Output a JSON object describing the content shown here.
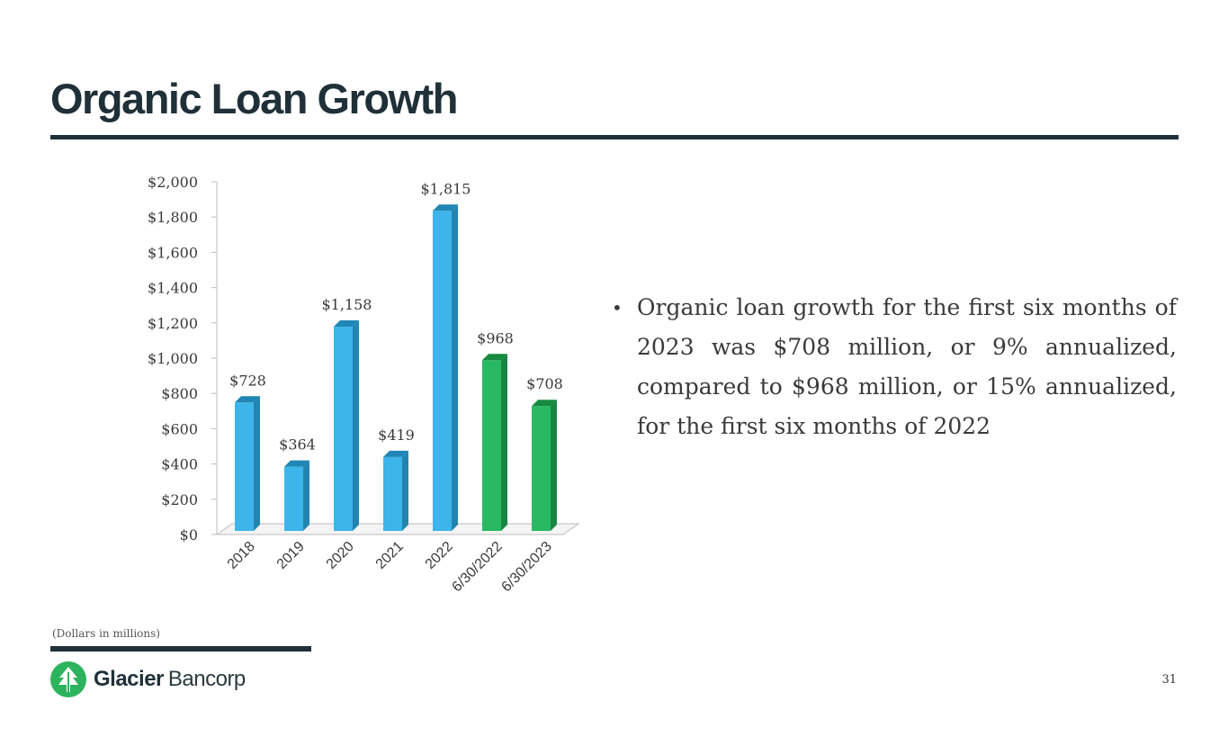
{
  "title": "Organic Loan Growth",
  "footnote": "(Dollars in millions)",
  "page_number": "31",
  "brand": {
    "name_bold": "Glacier",
    "name_light": "Bancorp",
    "color": "#2db35d"
  },
  "bullets": [
    "Organic loan growth for the first six months of 2023 was $708 million, or 9% annualized, compared to $968 million, or 15% annualized, for the first six months of 2022"
  ],
  "colors": {
    "bar_blue": "#3db5ea",
    "bar_blue_side": "#2384b0",
    "bar_blue_top": "#1f86b5",
    "bar_green": "#29b963",
    "bar_green_side": "#1a8442",
    "bar_green_top": "#178a40",
    "accent_dark": "#1f3038"
  },
  "chart_data": {
    "type": "bar",
    "categories": [
      "2018",
      "2019",
      "2020",
      "2021",
      "2022",
      "6/30/2022",
      "6/30/2023"
    ],
    "values": [
      728,
      364,
      1158,
      419,
      1815,
      968,
      708
    ],
    "data_labels": [
      "$728",
      "$364",
      "$1,158",
      "$419",
      "$1,815",
      "$968",
      "$708"
    ],
    "bar_colors": [
      "blue",
      "blue",
      "blue",
      "blue",
      "blue",
      "green",
      "green"
    ],
    "y_ticks": [
      0,
      200,
      400,
      600,
      800,
      1000,
      1200,
      1400,
      1600,
      1800,
      2000
    ],
    "y_tick_labels": [
      "$0",
      "$200",
      "$400",
      "$600",
      "$800",
      "$1,000",
      "$1,200",
      "$1,400",
      "$1,600",
      "$1,800",
      "$2,000"
    ],
    "ylim": [
      0,
      2000
    ],
    "title": "",
    "xlabel": "",
    "ylabel": "",
    "grid": false,
    "legend": "none"
  }
}
